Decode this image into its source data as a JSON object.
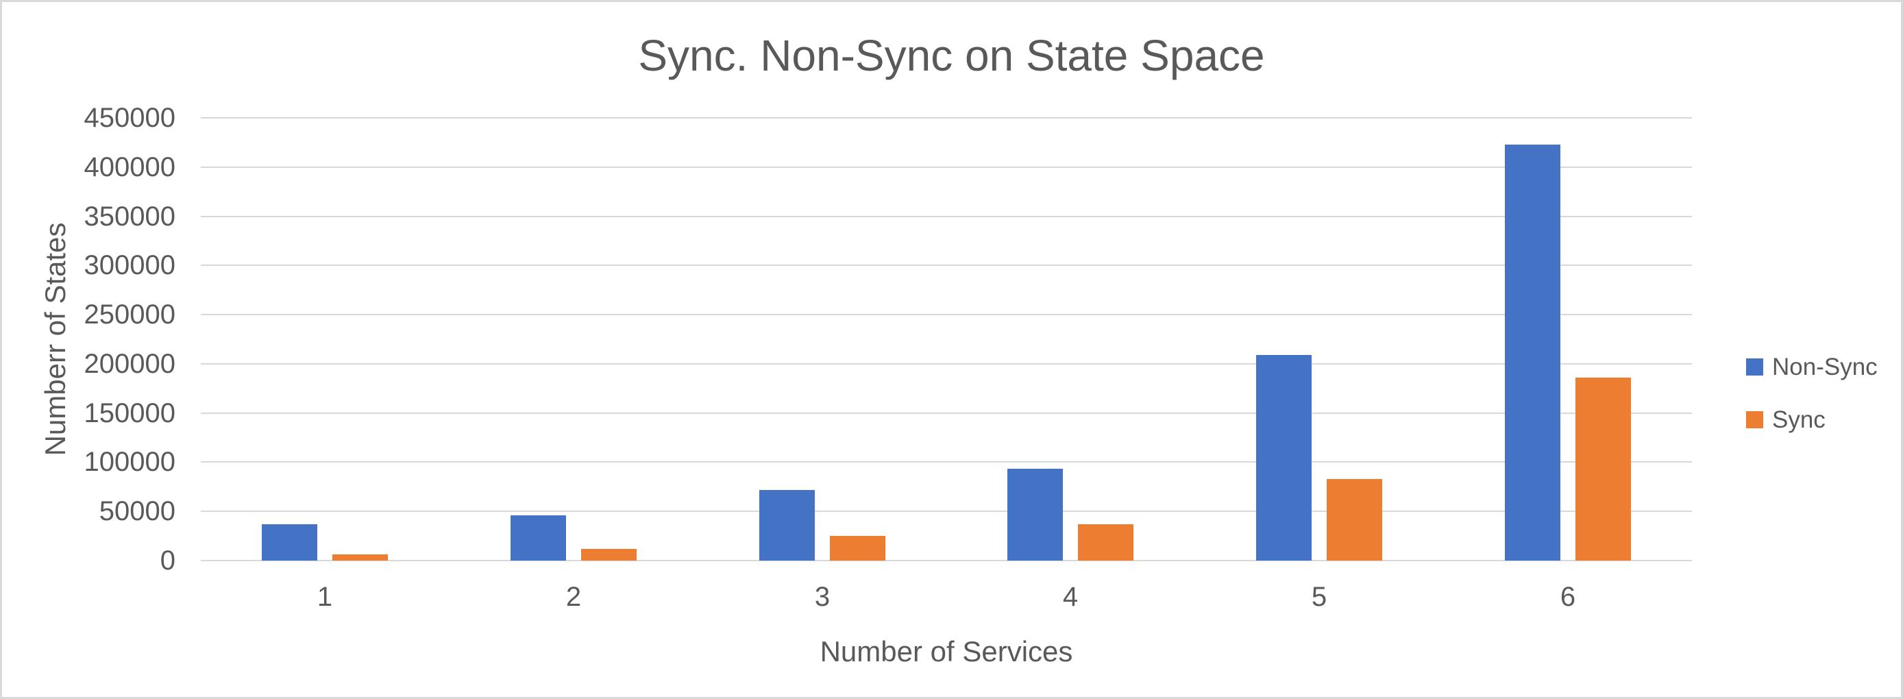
{
  "chart_data": {
    "type": "bar",
    "title": "Sync. Non-Sync on State Space",
    "xlabel": "Number of Services",
    "ylabel": "Numberr of States",
    "categories": [
      "1",
      "2",
      "3",
      "4",
      "5",
      "6"
    ],
    "series": [
      {
        "name": "Non-Sync",
        "color": "#4472C4",
        "values": [
          37000,
          46000,
          72000,
          93500,
          209000,
          423000
        ]
      },
      {
        "name": "Sync",
        "color": "#ED7D31",
        "values": [
          6500,
          12000,
          25000,
          37000,
          83000,
          186000
        ]
      }
    ],
    "ylim": [
      0,
      450000
    ],
    "ytick_step": 50000,
    "ytick_labels": [
      "0",
      "50000",
      "100000",
      "150000",
      "200000",
      "250000",
      "300000",
      "350000",
      "400000",
      "450000"
    ],
    "grid": "horizontal-only",
    "legend_position": "right",
    "colors": {
      "text": "#595959",
      "gridline": "#D9D9D9",
      "border": "#D9D9D9",
      "background": "#FFFFFF"
    }
  }
}
